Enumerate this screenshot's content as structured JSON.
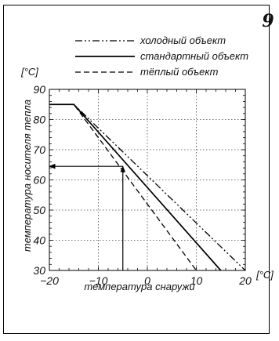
{
  "page_number": "9",
  "chart_data": {
    "type": "line",
    "title": "",
    "xlabel": "температура снаружи",
    "ylabel": "температура носителя тепла",
    "x_unit": "[°C]",
    "y_unit": "[°C]",
    "xlim": [
      -20,
      20
    ],
    "ylim": [
      30,
      90
    ],
    "x_ticks": [
      -20,
      -10,
      0,
      10,
      20
    ],
    "y_ticks": [
      30,
      40,
      50,
      60,
      70,
      80,
      90
    ],
    "x_tick_labels": [
      "−20",
      "−10",
      "0",
      "10",
      "20"
    ],
    "y_tick_labels": [
      "30",
      "40",
      "50",
      "60",
      "70",
      "80",
      "90"
    ],
    "grid": true,
    "legend_position": "top",
    "series": [
      {
        "name": "холодный объект",
        "style": "dash-dot-dot",
        "x": [
          -20,
          -15,
          20
        ],
        "y": [
          85,
          85,
          30
        ]
      },
      {
        "name": "стандартный объект",
        "style": "solid",
        "x": [
          -20,
          -15,
          15
        ],
        "y": [
          85,
          85,
          30
        ]
      },
      {
        "name": "тёплый объект",
        "style": "dashed",
        "x": [
          -20,
          -15,
          10
        ],
        "y": [
          85,
          85,
          30
        ]
      }
    ],
    "annotations": [
      {
        "type": "arrow",
        "from": [
          -5,
          30
        ],
        "to": [
          -5,
          64.5
        ]
      },
      {
        "type": "arrow",
        "from": [
          -5,
          64.5
        ],
        "to": [
          -20,
          64.5
        ]
      }
    ]
  }
}
